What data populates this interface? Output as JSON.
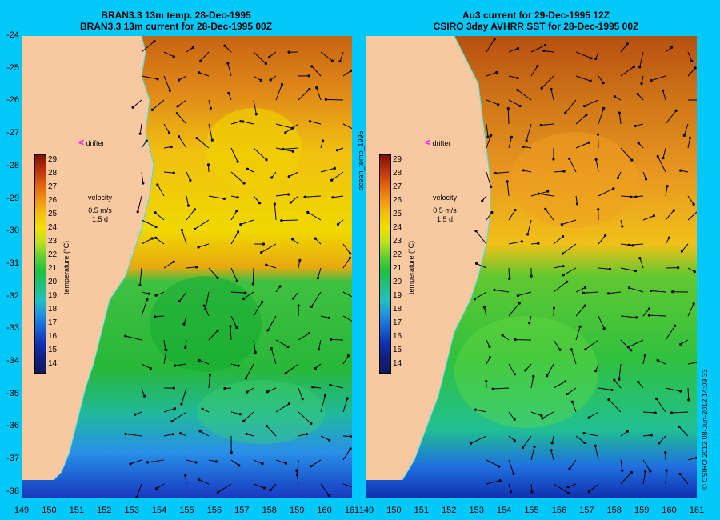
{
  "left_panel": {
    "title_line1": "BRAN3.3 13m temp. 28-Dec-1995",
    "title_line2": "BRAN3.3 13m current for 28-Dec-1995 00Z",
    "colorbar_axis_label": "temperature (°C)",
    "velocity_label": "velocity",
    "velocity_speed": "0.5 m/s",
    "velocity_time": "1.5 d",
    "drifter_label": "drifter"
  },
  "right_panel": {
    "title_line1": "Au3 current for 29-Dec-1995 12Z",
    "title_line2": "CSIRO 3day AVHRR SST for 28-Dec-1995 00Z",
    "colorbar_axis_label": "temperature (°C)",
    "velocity_label": "velocity",
    "velocity_speed": "0.5 m/s",
    "velocity_time": "1.5 d",
    "drifter_label": "drifter"
  },
  "side_label": "ocean_temp_1995",
  "credit": "© CSIRO 2012   08-Jun-2012 14:09:33",
  "lat_ticks": [
    "-24",
    "-25",
    "-26",
    "-27",
    "-28",
    "-29",
    "-30",
    "-31",
    "-32",
    "-33",
    "-34",
    "-35",
    "-36",
    "-37",
    "-38"
  ],
  "lon_ticks_left": [
    "149",
    "150",
    "151",
    "152",
    "153",
    "154",
    "155",
    "156",
    "157",
    "158",
    "159",
    "160",
    "161"
  ],
  "lon_ticks_right": [
    "149",
    "150",
    "151",
    "152",
    "153",
    "154",
    "155",
    "156",
    "157",
    "158",
    "159",
    "160",
    "161"
  ],
  "colorbar_ticks": [
    "29",
    "28",
    "27",
    "26",
    "25",
    "24",
    "23",
    "22",
    "21",
    "20",
    "19",
    "18",
    "17",
    "16",
    "15",
    "14"
  ],
  "colors": {
    "background": "#00c8f8",
    "land": "#f8c8a0",
    "warm": "#c86010",
    "mid": "#f0d000",
    "cool": "#20c040",
    "cold": "#1040c0",
    "drifter": "#ff00ff"
  }
}
